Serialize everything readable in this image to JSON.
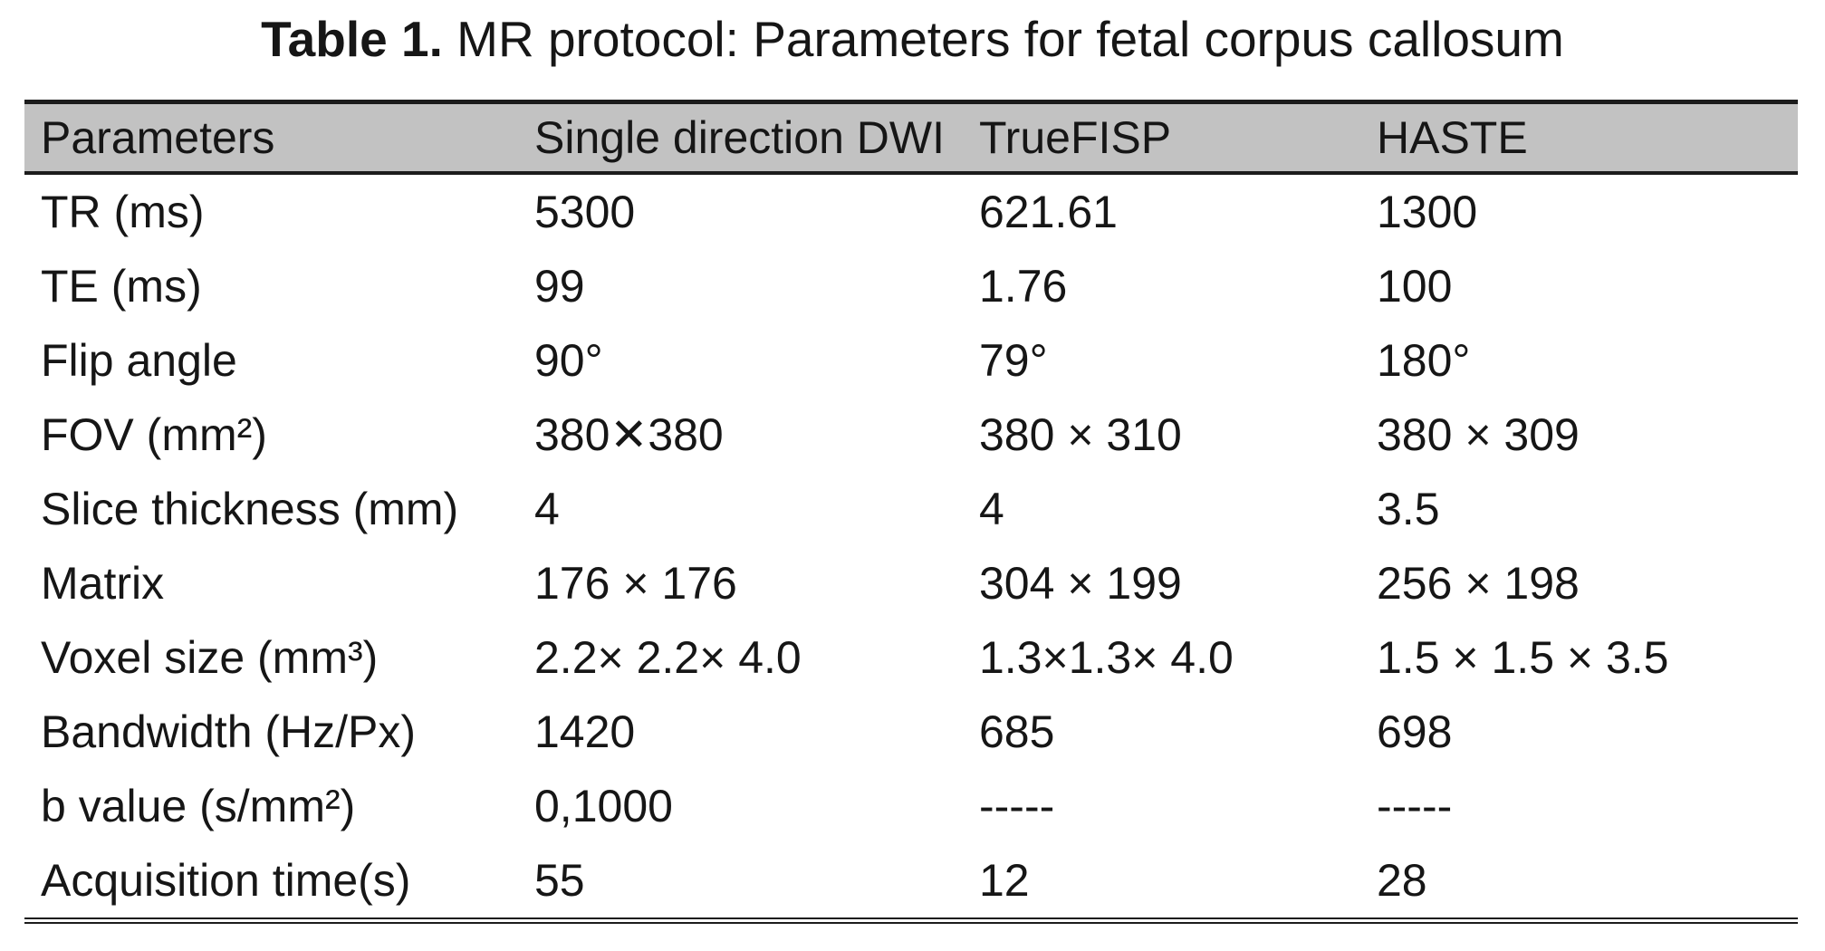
{
  "title": {
    "prefix": "Table 1.",
    "rest": " MR protocol: Parameters for fetal corpus callosum"
  },
  "table": {
    "columns": [
      "Parameters",
      "Single direction DWI",
      "TrueFISP",
      "HASTE"
    ],
    "rows": [
      {
        "label": "TR (ms)",
        "values": [
          "5300",
          "621.61",
          "1300"
        ]
      },
      {
        "label": "TE (ms)",
        "values": [
          "99",
          "1.76",
          "100"
        ]
      },
      {
        "label": "Flip angle",
        "values": [
          "90°",
          "79°",
          "180°"
        ]
      },
      {
        "label": "FOV (mm²)",
        "values": [
          "380✕380",
          "380 × 310",
          "380 × 309"
        ]
      },
      {
        "label": "Slice thickness (mm)",
        "values": [
          "4",
          "4",
          "3.5"
        ]
      },
      {
        "label": "Matrix",
        "values": [
          "176 × 176",
          "304 × 199",
          "256 × 198"
        ]
      },
      {
        "label": "Voxel size (mm³)",
        "values": [
          "2.2× 2.2× 4.0",
          "1.3×1.3× 4.0",
          "1.5 × 1.5 × 3.5"
        ]
      },
      {
        "label": "Bandwidth (Hz/Px)",
        "values": [
          "1420",
          "685",
          "698"
        ]
      },
      {
        "label": "b value (s/mm²)",
        "values": [
          "0,1000",
          "-----",
          "-----"
        ]
      },
      {
        "label": "Acquisition time(s)",
        "values": [
          "55",
          "12",
          "28"
        ]
      }
    ]
  },
  "colors": {
    "header_bg": "#c2c2c2",
    "border": "#1c1c1c",
    "text": "#161616",
    "background": "#ffffff"
  }
}
